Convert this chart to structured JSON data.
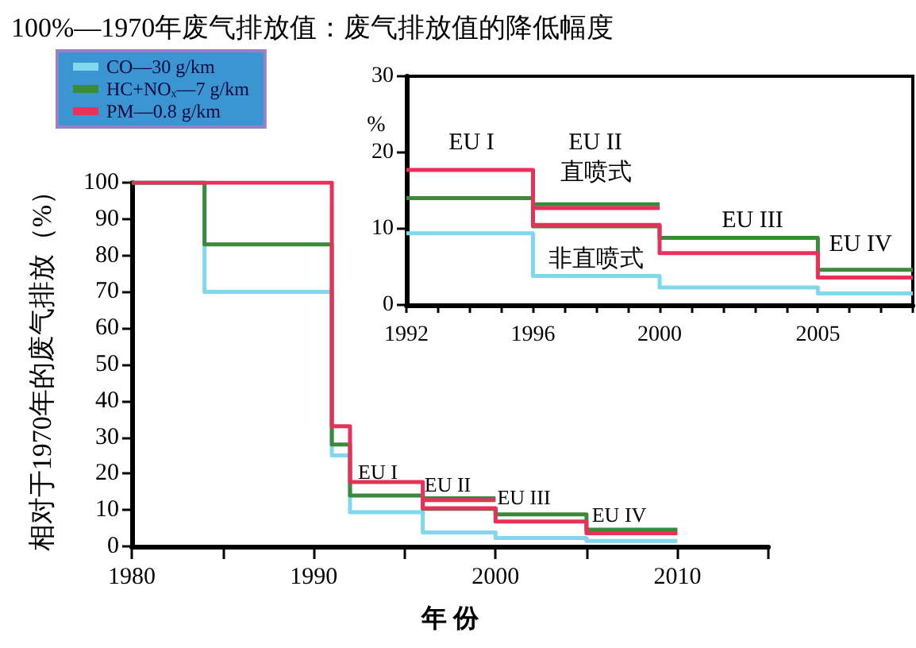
{
  "chart_data": [
    {
      "type": "step",
      "title": "100%—1970年废气排放值：废气排放值的降低幅度",
      "xlabel": "年 份",
      "ylabel": "相对于1970年的废气排放（%）",
      "xlim": [
        1980,
        2015
      ],
      "xticks": [
        1980,
        {
          "value": 1985,
          "label": null
        },
        1990,
        {
          "value": 1995,
          "label": null
        },
        2000,
        {
          "value": 2005,
          "label": null
        },
        2010,
        {
          "value": 2015,
          "label": null
        }
      ],
      "ylim": [
        0,
        100
      ],
      "yticks": [
        0,
        10,
        20,
        30,
        40,
        50,
        60,
        70,
        80,
        90,
        100
      ],
      "legend": "top left",
      "marker": "none",
      "line_style": "solid",
      "grid": false,
      "series": [
        {
          "name": "CO—30 g/km",
          "color": "#7fd8ee",
          "x": [
            1980,
            1984,
            1991,
            1992,
            1996,
            2000,
            2005,
            2010
          ],
          "values": [
            100,
            70,
            25,
            9.4,
            3.8,
            2.3,
            1.5,
            1.5
          ]
        },
        {
          "name": "HC+NOₓ—7 g/km",
          "color": "#3a8a3a",
          "x": [
            1980,
            1984,
            1991,
            1992,
            1996,
            2000,
            2005,
            2010
          ],
          "values": [
            100,
            83,
            28,
            14,
            10.3,
            8.8,
            4.6,
            4.6
          ]
        },
        {
          "color": "#3a8a3a",
          "x": [
            1996,
            2000
          ],
          "values": [
            13.2,
            13.2
          ]
        },
        {
          "name": "PM—0.8 g/km",
          "color": "#e8305a",
          "x": [
            1980,
            1991,
            1992,
            1996,
            2000,
            2005,
            2010
          ],
          "values": [
            100,
            33,
            17.7,
            10.5,
            6.8,
            3.6,
            3.6
          ]
        },
        {
          "color": "#e8305a",
          "x": [
            1996,
            2000
          ],
          "values": [
            12.7,
            12.7
          ]
        }
      ],
      "annotations": [
        "EU I",
        "EU II",
        "EU III",
        "EU IV"
      ]
    },
    {
      "type": "step",
      "ylabel": "%",
      "xlim": [
        1992,
        2008
      ],
      "xticks": [
        1992,
        {
          "value": 1993,
          "label": null
        },
        {
          "value": 1994,
          "label": null
        },
        {
          "value": 1995,
          "label": null
        },
        1996,
        {
          "value": 1997,
          "label": null
        },
        {
          "value": 1998,
          "label": null
        },
        {
          "value": 1999,
          "label": null
        },
        2000,
        {
          "value": 2001,
          "label": null
        },
        {
          "value": 2002,
          "label": null
        },
        {
          "value": 2003,
          "label": null
        },
        {
          "value": 2004,
          "label": null
        },
        2005,
        {
          "value": 2006,
          "label": null
        },
        {
          "value": 2007,
          "label": null
        },
        {
          "value": 2008,
          "label": null
        }
      ],
      "ylim": [
        0,
        30
      ],
      "yticks": [
        0,
        10,
        20,
        30
      ],
      "marker": "none",
      "line_style": "solid",
      "grid": false,
      "series": [
        {
          "color": "#7fd8ee",
          "x": [
            1992,
            1996,
            2000,
            2005,
            2008
          ],
          "values": [
            9.4,
            3.8,
            2.3,
            1.5,
            1.5
          ]
        },
        {
          "color": "#3a8a3a",
          "x": [
            1992,
            1996,
            2000,
            2005,
            2008
          ],
          "values": [
            14,
            10.3,
            8.8,
            4.6,
            4.6
          ]
        },
        {
          "color": "#3a8a3a",
          "x": [
            1996,
            2000
          ],
          "values": [
            13.2,
            13.2
          ]
        },
        {
          "color": "#e8305a",
          "x": [
            1992,
            1996,
            2000,
            2005,
            2008
          ],
          "values": [
            17.7,
            10.5,
            6.8,
            3.6,
            3.6
          ]
        },
        {
          "color": "#e8305a",
          "x": [
            1996,
            2000
          ],
          "values": [
            12.7,
            12.7
          ]
        }
      ],
      "annotations": [
        "EU I",
        "EU II",
        "EU III",
        "EU IV",
        {
          "text": "直喷式",
          "x": 1998,
          "y": 12.7
        },
        {
          "text": "非直喷式",
          "x": 1998,
          "y": 10.5
        }
      ]
    }
  ]
}
